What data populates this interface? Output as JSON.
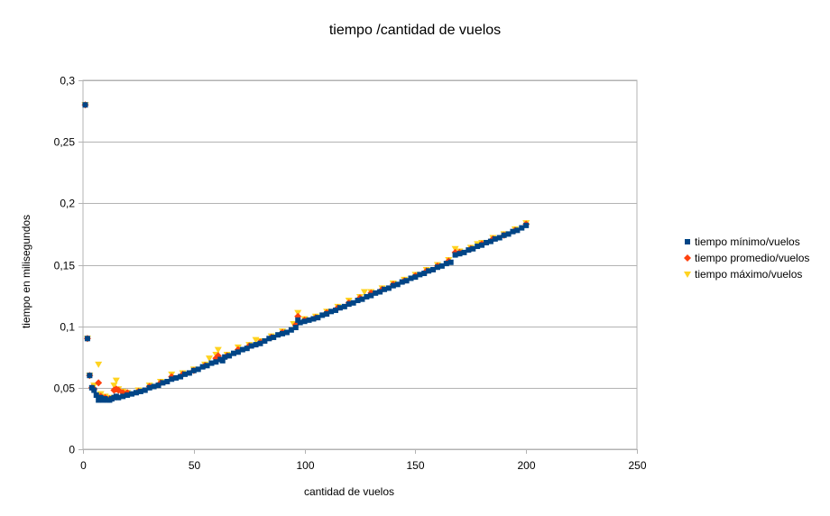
{
  "chart_data": {
    "type": "scatter",
    "title": "tiempo /cantidad de vuelos",
    "xlabel": "cantidad de vuelos",
    "ylabel": "tiempo en milisegundos",
    "xlim": [
      0,
      250
    ],
    "ylim": [
      0,
      0.3
    ],
    "x_ticks": [
      0,
      50,
      100,
      150,
      200,
      250
    ],
    "x_tick_labels": [
      "0",
      "50",
      "100",
      "150",
      "200",
      "250"
    ],
    "y_ticks": [
      0,
      0.05,
      0.1,
      0.15,
      0.2,
      0.25,
      0.3
    ],
    "y_tick_labels": [
      "0",
      "0,05",
      "0,1",
      "0,15",
      "0,2",
      "0,25",
      "0,3"
    ],
    "grid": "horizontal",
    "legend_position": "right",
    "series": [
      {
        "name": "tiempo mínimo/vuelos",
        "marker": "square",
        "color": "#004586",
        "points": [
          [
            1,
            0.28
          ],
          [
            2,
            0.09
          ],
          [
            3,
            0.06
          ],
          [
            4,
            0.05
          ],
          [
            5,
            0.048
          ],
          [
            6,
            0.044
          ],
          [
            7,
            0.04
          ],
          [
            8,
            0.042
          ],
          [
            9,
            0.04
          ],
          [
            10,
            0.041
          ],
          [
            11,
            0.04
          ],
          [
            12,
            0.04
          ],
          [
            13,
            0.041
          ],
          [
            14,
            0.042
          ],
          [
            15,
            0.043
          ],
          [
            16,
            0.042
          ],
          [
            18,
            0.043
          ],
          [
            20,
            0.044
          ],
          [
            22,
            0.045
          ],
          [
            24,
            0.046
          ],
          [
            26,
            0.047
          ],
          [
            28,
            0.048
          ],
          [
            30,
            0.05
          ],
          [
            32,
            0.051
          ],
          [
            34,
            0.052
          ],
          [
            36,
            0.054
          ],
          [
            38,
            0.055
          ],
          [
            40,
            0.057
          ],
          [
            42,
            0.058
          ],
          [
            44,
            0.059
          ],
          [
            46,
            0.061
          ],
          [
            48,
            0.062
          ],
          [
            50,
            0.064
          ],
          [
            52,
            0.065
          ],
          [
            54,
            0.067
          ],
          [
            56,
            0.068
          ],
          [
            58,
            0.07
          ],
          [
            60,
            0.071
          ],
          [
            62,
            0.073
          ],
          [
            63,
            0.072
          ],
          [
            64,
            0.075
          ],
          [
            66,
            0.076
          ],
          [
            68,
            0.078
          ],
          [
            70,
            0.079
          ],
          [
            72,
            0.081
          ],
          [
            74,
            0.082
          ],
          [
            76,
            0.084
          ],
          [
            78,
            0.085
          ],
          [
            80,
            0.086
          ],
          [
            82,
            0.088
          ],
          [
            84,
            0.09
          ],
          [
            86,
            0.091
          ],
          [
            88,
            0.093
          ],
          [
            90,
            0.094
          ],
          [
            92,
            0.095
          ],
          [
            94,
            0.097
          ],
          [
            96,
            0.099
          ],
          [
            97,
            0.105
          ],
          [
            98,
            0.103
          ],
          [
            100,
            0.104
          ],
          [
            102,
            0.105
          ],
          [
            104,
            0.106
          ],
          [
            106,
            0.107
          ],
          [
            108,
            0.109
          ],
          [
            110,
            0.11
          ],
          [
            112,
            0.112
          ],
          [
            114,
            0.113
          ],
          [
            116,
            0.115
          ],
          [
            118,
            0.116
          ],
          [
            120,
            0.118
          ],
          [
            122,
            0.119
          ],
          [
            124,
            0.121
          ],
          [
            126,
            0.122
          ],
          [
            128,
            0.124
          ],
          [
            130,
            0.125
          ],
          [
            132,
            0.127
          ],
          [
            134,
            0.128
          ],
          [
            136,
            0.13
          ],
          [
            138,
            0.131
          ],
          [
            140,
            0.133
          ],
          [
            142,
            0.134
          ],
          [
            144,
            0.136
          ],
          [
            146,
            0.137
          ],
          [
            148,
            0.139
          ],
          [
            150,
            0.14
          ],
          [
            152,
            0.142
          ],
          [
            154,
            0.143
          ],
          [
            156,
            0.145
          ],
          [
            158,
            0.146
          ],
          [
            160,
            0.148
          ],
          [
            162,
            0.149
          ],
          [
            164,
            0.151
          ],
          [
            166,
            0.152
          ],
          [
            168,
            0.158
          ],
          [
            170,
            0.159
          ],
          [
            172,
            0.16
          ],
          [
            174,
            0.162
          ],
          [
            176,
            0.163
          ],
          [
            178,
            0.165
          ],
          [
            180,
            0.166
          ],
          [
            182,
            0.168
          ],
          [
            184,
            0.169
          ],
          [
            186,
            0.171
          ],
          [
            188,
            0.172
          ],
          [
            190,
            0.174
          ],
          [
            192,
            0.175
          ],
          [
            194,
            0.177
          ],
          [
            196,
            0.178
          ],
          [
            198,
            0.18
          ],
          [
            200,
            0.182
          ]
        ]
      },
      {
        "name": "tiempo promedio/vuelos",
        "marker": "diamond",
        "color": "#ff420e",
        "points": [
          [
            1,
            0.28
          ],
          [
            2,
            0.09
          ],
          [
            3,
            0.06
          ],
          [
            4,
            0.05
          ],
          [
            5,
            0.049
          ],
          [
            7,
            0.054
          ],
          [
            8,
            0.043
          ],
          [
            10,
            0.042
          ],
          [
            12,
            0.041
          ],
          [
            14,
            0.048
          ],
          [
            15,
            0.049
          ],
          [
            16,
            0.048
          ],
          [
            18,
            0.046
          ],
          [
            20,
            0.046
          ],
          [
            25,
            0.047
          ],
          [
            30,
            0.051
          ],
          [
            35,
            0.054
          ],
          [
            40,
            0.059
          ],
          [
            45,
            0.061
          ],
          [
            50,
            0.064
          ],
          [
            55,
            0.068
          ],
          [
            60,
            0.074
          ],
          [
            61,
            0.076
          ],
          [
            65,
            0.076
          ],
          [
            70,
            0.081
          ],
          [
            75,
            0.084
          ],
          [
            80,
            0.087
          ],
          [
            85,
            0.091
          ],
          [
            90,
            0.095
          ],
          [
            96,
            0.101
          ],
          [
            97,
            0.108
          ],
          [
            100,
            0.105
          ],
          [
            105,
            0.107
          ],
          [
            110,
            0.111
          ],
          [
            115,
            0.115
          ],
          [
            120,
            0.119
          ],
          [
            125,
            0.123
          ],
          [
            130,
            0.127
          ],
          [
            135,
            0.13
          ],
          [
            140,
            0.134
          ],
          [
            145,
            0.137
          ],
          [
            150,
            0.141
          ],
          [
            155,
            0.145
          ],
          [
            160,
            0.149
          ],
          [
            165,
            0.153
          ],
          [
            168,
            0.16
          ],
          [
            170,
            0.16
          ],
          [
            175,
            0.163
          ],
          [
            180,
            0.167
          ],
          [
            185,
            0.171
          ],
          [
            190,
            0.174
          ],
          [
            195,
            0.178
          ],
          [
            200,
            0.183
          ]
        ]
      },
      {
        "name": "tiempo máximo/vuelos",
        "marker": "triangle-down",
        "color": "#ffd320",
        "points": [
          [
            1,
            0.28
          ],
          [
            2,
            0.09
          ],
          [
            3,
            0.06
          ],
          [
            5,
            0.052
          ],
          [
            7,
            0.069
          ],
          [
            8,
            0.045
          ],
          [
            10,
            0.043
          ],
          [
            12,
            0.042
          ],
          [
            14,
            0.052
          ],
          [
            15,
            0.056
          ],
          [
            16,
            0.049
          ],
          [
            18,
            0.047
          ],
          [
            20,
            0.046
          ],
          [
            25,
            0.048
          ],
          [
            30,
            0.052
          ],
          [
            35,
            0.055
          ],
          [
            40,
            0.061
          ],
          [
            45,
            0.062
          ],
          [
            50,
            0.065
          ],
          [
            55,
            0.069
          ],
          [
            57,
            0.074
          ],
          [
            60,
            0.077
          ],
          [
            61,
            0.081
          ],
          [
            65,
            0.077
          ],
          [
            70,
            0.083
          ],
          [
            75,
            0.085
          ],
          [
            78,
            0.089
          ],
          [
            80,
            0.088
          ],
          [
            85,
            0.092
          ],
          [
            90,
            0.096
          ],
          [
            95,
            0.102
          ],
          [
            97,
            0.111
          ],
          [
            100,
            0.106
          ],
          [
            105,
            0.108
          ],
          [
            110,
            0.112
          ],
          [
            115,
            0.116
          ],
          [
            120,
            0.121
          ],
          [
            125,
            0.124
          ],
          [
            127,
            0.128
          ],
          [
            130,
            0.128
          ],
          [
            135,
            0.131
          ],
          [
            140,
            0.135
          ],
          [
            145,
            0.138
          ],
          [
            150,
            0.142
          ],
          [
            155,
            0.146
          ],
          [
            160,
            0.15
          ],
          [
            165,
            0.154
          ],
          [
            168,
            0.163
          ],
          [
            170,
            0.161
          ],
          [
            175,
            0.164
          ],
          [
            178,
            0.167
          ],
          [
            180,
            0.168
          ],
          [
            185,
            0.172
          ],
          [
            190,
            0.175
          ],
          [
            195,
            0.179
          ],
          [
            200,
            0.184
          ]
        ]
      }
    ]
  }
}
